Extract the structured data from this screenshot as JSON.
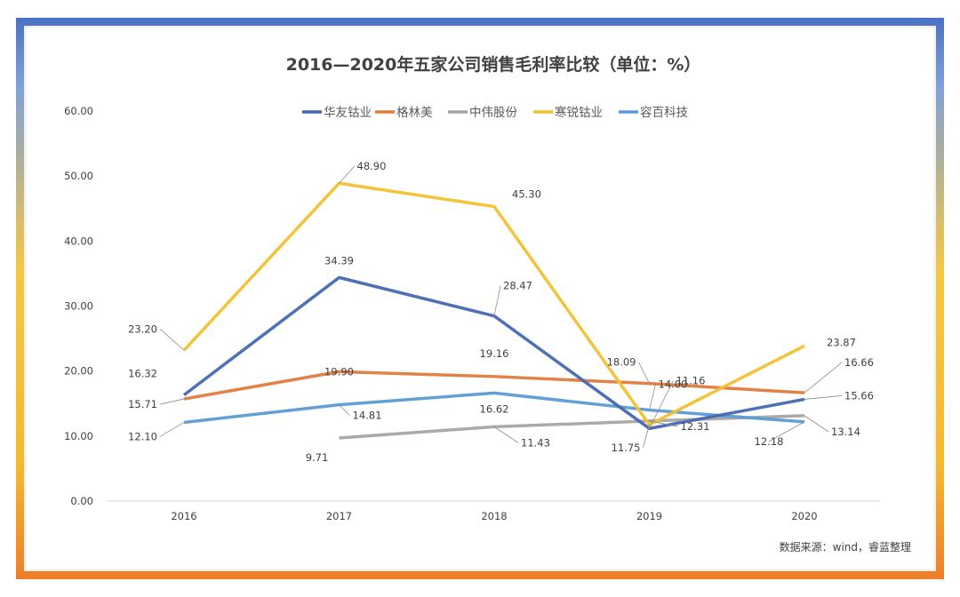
{
  "chart_data": {
    "type": "line",
    "title": "2016—2020年五家公司销售毛利率比较（单位：%）",
    "categories": [
      "2016",
      "2017",
      "2018",
      "2019",
      "2020"
    ],
    "ylim": [
      0,
      60
    ],
    "yticks": [
      "0.00",
      "10.00",
      "20.00",
      "30.00",
      "40.00",
      "50.00",
      "60.00"
    ],
    "grid": false,
    "legend_position": "top",
    "series": [
      {
        "name": "华友钴业",
        "color": "#4468b0",
        "values": [
          16.32,
          34.39,
          28.47,
          11.16,
          15.66
        ]
      },
      {
        "name": "格林美",
        "color": "#e07b3c",
        "values": [
          15.71,
          19.9,
          19.16,
          18.09,
          16.66
        ]
      },
      {
        "name": "中伟股份",
        "color": "#a5a5a5",
        "values": [
          null,
          9.71,
          11.43,
          12.31,
          13.14
        ]
      },
      {
        "name": "寒锐钴业",
        "color": "#f2c12e",
        "values": [
          23.2,
          48.9,
          45.3,
          11.75,
          23.87
        ]
      },
      {
        "name": "容百科技",
        "color": "#5b9bd5",
        "values": [
          12.1,
          14.81,
          16.62,
          14.0,
          12.18
        ]
      }
    ],
    "source": "数据来源：wind，睿蓝整理"
  }
}
